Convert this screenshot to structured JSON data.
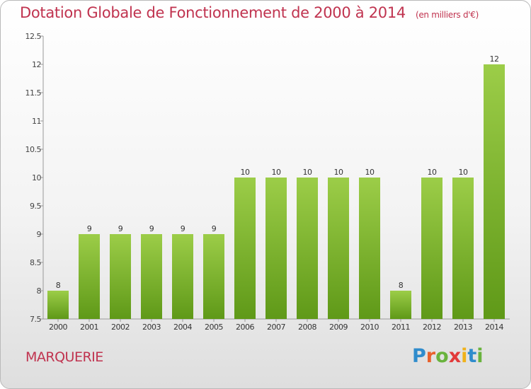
{
  "header": {
    "title": "Dotation Globale de Fonctionnement de 2000 à 2014",
    "unit": "(en milliers d'€)"
  },
  "footer": {
    "place": "MARQUERIE",
    "brand": "Proxiti"
  },
  "colors": {
    "bar_light": "#9ccd48",
    "bar_dark": "#5f9918",
    "title": "#c0334f"
  },
  "chart_data": {
    "type": "bar",
    "title": "Dotation Globale de Fonctionnement de 2000 à 2014",
    "subtitle": "(en milliers d'€)",
    "xlabel": "",
    "ylabel": "",
    "categories": [
      "2000",
      "2001",
      "2002",
      "2003",
      "2004",
      "2005",
      "2006",
      "2007",
      "2008",
      "2009",
      "2010",
      "2011",
      "2012",
      "2013",
      "2014"
    ],
    "values": [
      8,
      9,
      9,
      9,
      9,
      9,
      10,
      10,
      10,
      10,
      10,
      8,
      10,
      10,
      12
    ],
    "ylim": [
      7.5,
      12.5
    ],
    "yticks": [
      7.5,
      8,
      8.5,
      9,
      9.5,
      10,
      10.5,
      11,
      11.5,
      12,
      12.5
    ],
    "ytick_labels": [
      "7.5",
      "8",
      "8.5",
      "9",
      "9.5",
      "10",
      "10.5",
      "11",
      "11.5",
      "12",
      "12.5"
    ],
    "grid": false
  }
}
